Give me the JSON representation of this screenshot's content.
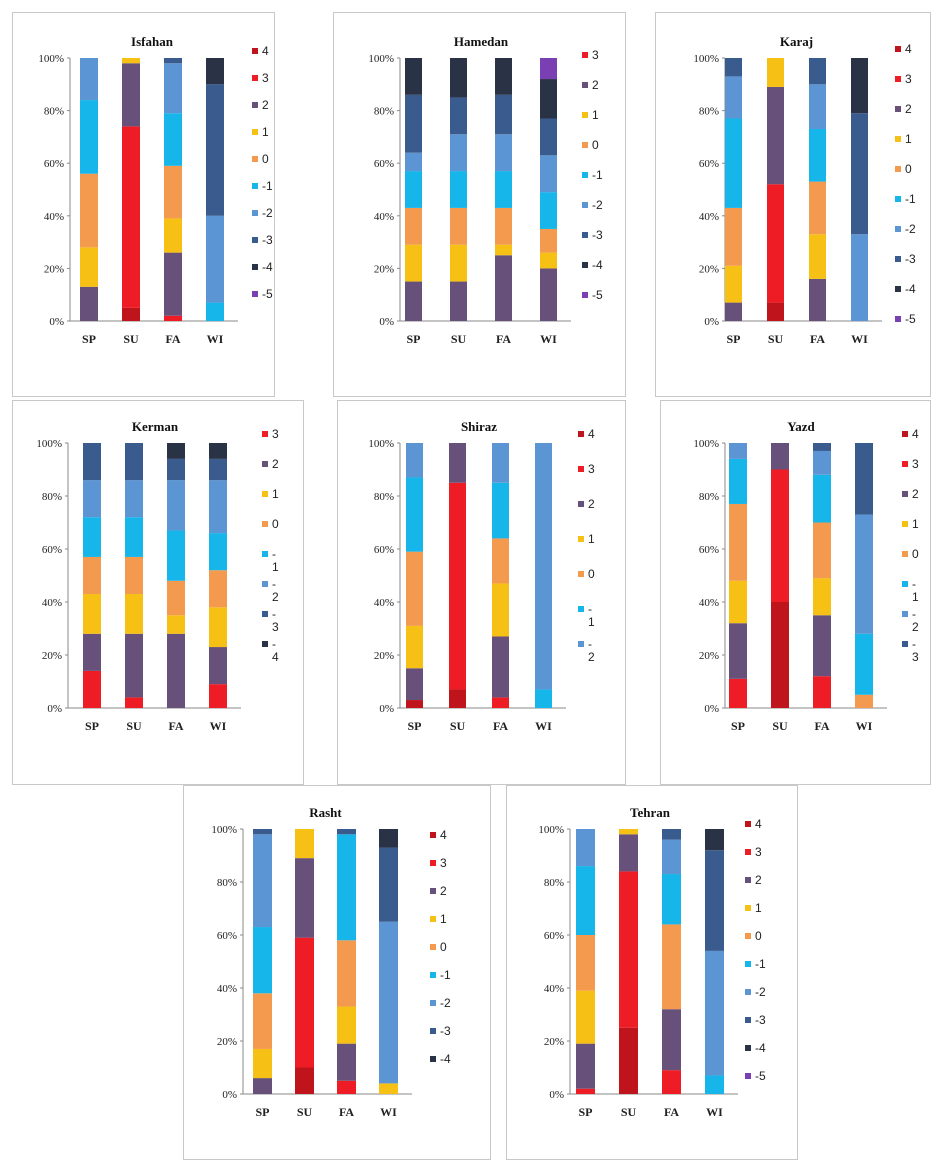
{
  "colors": {
    "4": "#c0141c",
    "3": "#ee1c25",
    "2": "#67507a",
    "1": "#f6c014",
    "0": "#f39a4f",
    "-1": "#16b5ea",
    "-2": "#5c95d3",
    "-3": "#3a5b8e",
    "-4": "#2a3346",
    "-5": "#7a3fb2"
  },
  "chart_data": [
    {
      "type": "bar",
      "stacked": true,
      "title": "Isfahan",
      "categories": [
        "SP",
        "SU",
        "FA",
        "WI"
      ],
      "y_ticks": [
        "0%",
        "20%",
        "40%",
        "60%",
        "80%",
        "100%"
      ],
      "ylim": [
        0,
        100
      ],
      "legend": [
        "4",
        "3",
        "2",
        "1",
        "0",
        "-1",
        "-2",
        "-3",
        "-4",
        "-5"
      ],
      "series": [
        {
          "name": "4",
          "values": [
            0,
            5,
            0,
            0
          ]
        },
        {
          "name": "3",
          "values": [
            0,
            69,
            2,
            0
          ]
        },
        {
          "name": "2",
          "values": [
            13,
            24,
            24,
            0
          ]
        },
        {
          "name": "1",
          "values": [
            15,
            2,
            13,
            0
          ]
        },
        {
          "name": "0",
          "values": [
            28,
            0,
            20,
            0
          ]
        },
        {
          "name": "-1",
          "values": [
            28,
            0,
            20,
            7
          ]
        },
        {
          "name": "-2",
          "values": [
            16,
            0,
            19,
            33
          ]
        },
        {
          "name": "-3",
          "values": [
            0,
            0,
            2,
            50
          ]
        },
        {
          "name": "-4",
          "values": [
            0,
            0,
            0,
            10
          ]
        },
        {
          "name": "-5",
          "values": [
            0,
            0,
            0,
            0
          ]
        }
      ]
    },
    {
      "type": "bar",
      "stacked": true,
      "title": "Hamedan",
      "categories": [
        "SP",
        "SU",
        "FA",
        "WI"
      ],
      "y_ticks": [
        "0%",
        "20%",
        "40%",
        "60%",
        "80%",
        "100%"
      ],
      "ylim": [
        0,
        100
      ],
      "legend": [
        "3",
        "2",
        "1",
        "0",
        "-1",
        "-2",
        "-3",
        "-4",
        "-5"
      ],
      "series": [
        {
          "name": "3",
          "values": [
            0,
            0,
            0,
            0
          ]
        },
        {
          "name": "2",
          "values": [
            15,
            15,
            25,
            20
          ]
        },
        {
          "name": "1",
          "values": [
            14,
            14,
            4,
            6
          ]
        },
        {
          "name": "0",
          "values": [
            14,
            14,
            14,
            9
          ]
        },
        {
          "name": "-1",
          "values": [
            14,
            14,
            14,
            14
          ]
        },
        {
          "name": "-2",
          "values": [
            7,
            14,
            14,
            14
          ]
        },
        {
          "name": "-3",
          "values": [
            22,
            14,
            15,
            14
          ]
        },
        {
          "name": "-4",
          "values": [
            14,
            15,
            14,
            15
          ]
        },
        {
          "name": "-5",
          "values": [
            0,
            0,
            0,
            8
          ]
        }
      ]
    },
    {
      "type": "bar",
      "stacked": true,
      "title": "Karaj",
      "categories": [
        "SP",
        "SU",
        "FA",
        "WI"
      ],
      "y_ticks": [
        "0%",
        "20%",
        "40%",
        "60%",
        "80%",
        "100%"
      ],
      "ylim": [
        0,
        100
      ],
      "legend": [
        "4",
        "3",
        "2",
        "1",
        "0",
        "-1",
        "-2",
        "-3",
        "-4",
        "-5"
      ],
      "series": [
        {
          "name": "4",
          "values": [
            0,
            7,
            0,
            0
          ]
        },
        {
          "name": "3",
          "values": [
            0,
            45,
            0,
            0
          ]
        },
        {
          "name": "2",
          "values": [
            7,
            37,
            16,
            0
          ]
        },
        {
          "name": "1",
          "values": [
            14,
            11,
            17,
            0
          ]
        },
        {
          "name": "0",
          "values": [
            22,
            0,
            20,
            0
          ]
        },
        {
          "name": "-1",
          "values": [
            34,
            0,
            20,
            0
          ]
        },
        {
          "name": "-2",
          "values": [
            16,
            0,
            17,
            33
          ]
        },
        {
          "name": "-3",
          "values": [
            7,
            0,
            10,
            46
          ]
        },
        {
          "name": "-4",
          "values": [
            0,
            0,
            0,
            21
          ]
        },
        {
          "name": "-5",
          "values": [
            0,
            0,
            0,
            0
          ]
        }
      ]
    },
    {
      "type": "bar",
      "stacked": true,
      "title": "Kerman",
      "categories": [
        "SP",
        "SU",
        "FA",
        "WI"
      ],
      "y_ticks": [
        "0%",
        "20%",
        "40%",
        "60%",
        "80%",
        "100%"
      ],
      "ylim": [
        0,
        100
      ],
      "legend": [
        "3",
        "2",
        "1",
        "0",
        "-\n1",
        "-\n2",
        "-\n3",
        "-\n4"
      ],
      "series": [
        {
          "name": "3",
          "values": [
            14,
            4,
            0,
            9
          ]
        },
        {
          "name": "2",
          "values": [
            14,
            24,
            28,
            14
          ]
        },
        {
          "name": "1",
          "values": [
            15,
            15,
            7,
            15
          ]
        },
        {
          "name": "0",
          "values": [
            14,
            14,
            13,
            14
          ]
        },
        {
          "name": "-1",
          "values": [
            15,
            15,
            19,
            14
          ]
        },
        {
          "name": "-2",
          "values": [
            14,
            14,
            19,
            20
          ]
        },
        {
          "name": "-3",
          "values": [
            14,
            14,
            8,
            8
          ]
        },
        {
          "name": "-4",
          "values": [
            0,
            0,
            6,
            6
          ]
        }
      ]
    },
    {
      "type": "bar",
      "stacked": true,
      "title": "Shiraz",
      "categories": [
        "SP",
        "SU",
        "FA",
        "WI"
      ],
      "y_ticks": [
        "0%",
        "20%",
        "40%",
        "60%",
        "80%",
        "100%"
      ],
      "ylim": [
        0,
        100
      ],
      "legend": [
        "4",
        "3",
        "2",
        "1",
        "0",
        "-\n1",
        "-\n2"
      ],
      "series": [
        {
          "name": "4",
          "values": [
            3,
            7,
            0,
            0
          ]
        },
        {
          "name": "3",
          "values": [
            0,
            78,
            4,
            0
          ]
        },
        {
          "name": "2",
          "values": [
            12,
            15,
            23,
            0
          ]
        },
        {
          "name": "1",
          "values": [
            16,
            0,
            20,
            0
          ]
        },
        {
          "name": "0",
          "values": [
            28,
            0,
            17,
            0
          ]
        },
        {
          "name": "-1",
          "values": [
            28,
            0,
            21,
            7
          ]
        },
        {
          "name": "-2",
          "values": [
            13,
            0,
            15,
            93
          ]
        }
      ]
    },
    {
      "type": "bar",
      "stacked": true,
      "title": "Yazd",
      "categories": [
        "SP",
        "SU",
        "FA",
        "WI"
      ],
      "y_ticks": [
        "0%",
        "20%",
        "40%",
        "60%",
        "80%",
        "100%"
      ],
      "ylim": [
        0,
        100
      ],
      "legend": [
        "4",
        "3",
        "2",
        "1",
        "0",
        "-\n1",
        "-\n2",
        "-\n3"
      ],
      "series": [
        {
          "name": "4",
          "values": [
            0,
            40,
            0,
            0
          ]
        },
        {
          "name": "3",
          "values": [
            11,
            50,
            12,
            0
          ]
        },
        {
          "name": "2",
          "values": [
            21,
            10,
            23,
            0
          ]
        },
        {
          "name": "1",
          "values": [
            16,
            0,
            14,
            0
          ]
        },
        {
          "name": "0",
          "values": [
            29,
            0,
            21,
            5
          ]
        },
        {
          "name": "-1",
          "values": [
            17,
            0,
            18,
            23
          ]
        },
        {
          "name": "-2",
          "values": [
            6,
            0,
            9,
            45
          ]
        },
        {
          "name": "-3",
          "values": [
            0,
            0,
            3,
            27
          ]
        }
      ]
    },
    {
      "type": "bar",
      "stacked": true,
      "title": "Rasht",
      "categories": [
        "SP",
        "SU",
        "FA",
        "WI"
      ],
      "y_ticks": [
        "0%",
        "20%",
        "40%",
        "60%",
        "80%",
        "100%"
      ],
      "ylim": [
        0,
        100
      ],
      "legend": [
        "4",
        "3",
        "2",
        "1",
        "0",
        "-1",
        "-2",
        "-3",
        "-4"
      ],
      "series": [
        {
          "name": "4",
          "values": [
            0,
            10,
            0,
            0
          ]
        },
        {
          "name": "3",
          "values": [
            0,
            49,
            5,
            0
          ]
        },
        {
          "name": "2",
          "values": [
            6,
            30,
            14,
            0
          ]
        },
        {
          "name": "1",
          "values": [
            11,
            11,
            14,
            4
          ]
        },
        {
          "name": "0",
          "values": [
            21,
            0,
            25,
            0
          ]
        },
        {
          "name": "-1",
          "values": [
            25,
            0,
            40,
            0
          ]
        },
        {
          "name": "-2",
          "values": [
            35,
            0,
            0,
            61
          ]
        },
        {
          "name": "-3",
          "values": [
            2,
            0,
            2,
            28
          ]
        },
        {
          "name": "-4",
          "values": [
            0,
            0,
            0,
            7
          ]
        }
      ]
    },
    {
      "type": "bar",
      "stacked": true,
      "title": "Tehran",
      "categories": [
        "SP",
        "SU",
        "FA",
        "WI"
      ],
      "y_ticks": [
        "0%",
        "20%",
        "40%",
        "60%",
        "80%",
        "100%"
      ],
      "ylim": [
        0,
        100
      ],
      "legend": [
        "4",
        "3",
        "2",
        "1",
        "0",
        "-1",
        "-2",
        "-3",
        "-4",
        "-5"
      ],
      "series": [
        {
          "name": "4",
          "values": [
            0,
            25,
            0,
            0
          ]
        },
        {
          "name": "3",
          "values": [
            2,
            59,
            9,
            0
          ]
        },
        {
          "name": "2",
          "values": [
            17,
            14,
            23,
            0
          ]
        },
        {
          "name": "1",
          "values": [
            20,
            2,
            0,
            0
          ]
        },
        {
          "name": "0",
          "values": [
            21,
            0,
            32,
            0
          ]
        },
        {
          "name": "-1",
          "values": [
            26,
            0,
            19,
            7
          ]
        },
        {
          "name": "-2",
          "values": [
            14,
            0,
            13,
            47
          ]
        },
        {
          "name": "-3",
          "values": [
            0,
            0,
            4,
            38
          ]
        },
        {
          "name": "-4",
          "values": [
            0,
            0,
            0,
            8
          ]
        },
        {
          "name": "-5",
          "values": [
            0,
            0,
            0,
            0
          ]
        }
      ]
    }
  ]
}
